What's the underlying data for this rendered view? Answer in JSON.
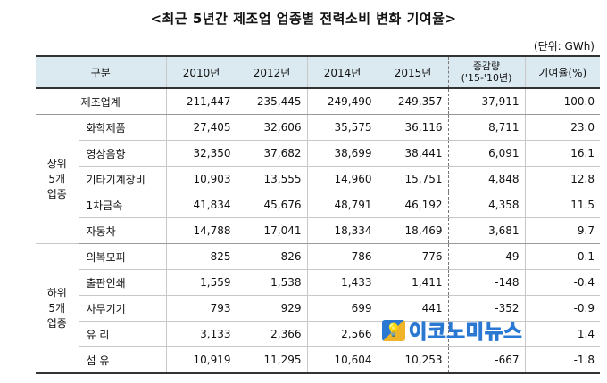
{
  "title": "<최근 5년간 제조업 업종별 전력소비 변화 기여율>",
  "unit": "(단위: GWh)",
  "table": {
    "headers": [
      "구분",
      "2010년",
      "2012년",
      "2014년",
      "2015년",
      "증감량\n('15-'10년)",
      "기여율(%)"
    ],
    "total": {
      "label": "제조업계",
      "values": [
        "211,447",
        "235,445",
        "249,490",
        "249,357",
        "37,911",
        "100.0"
      ]
    },
    "groups": [
      {
        "label": "상위\n5개\n업종",
        "rows": [
          {
            "name": "화학제품",
            "values": [
              "27,405",
              "32,606",
              "35,575",
              "36,116",
              "8,711",
              "23.0"
            ]
          },
          {
            "name": "영상음향",
            "values": [
              "32,350",
              "37,682",
              "38,699",
              "38,441",
              "6,091",
              "16.1"
            ]
          },
          {
            "name": "기타기계장비",
            "values": [
              "10,903",
              "13,555",
              "14,960",
              "15,751",
              "4,848",
              "12.8"
            ]
          },
          {
            "name": "1차금속",
            "values": [
              "41,834",
              "45,676",
              "48,791",
              "46,192",
              "4,358",
              "11.5"
            ]
          },
          {
            "name": "자동차",
            "values": [
              "14,788",
              "17,041",
              "18,334",
              "18,469",
              "3,681",
              "9.7"
            ]
          }
        ]
      },
      {
        "label": "하위\n5개\n업종",
        "rows": [
          {
            "name": "의복모피",
            "values": [
              "825",
              "826",
              "786",
              "776",
              "-49",
              "-0.1"
            ]
          },
          {
            "name": "출판인쇄",
            "values": [
              "1,559",
              "1,538",
              "1,433",
              "1,411",
              "-148",
              "-0.4"
            ]
          },
          {
            "name": "사무기기",
            "values": [
              "793",
              "929",
              "699",
              "441",
              "-352",
              "-0.9"
            ]
          },
          {
            "name": "유 리",
            "values": [
              "3,133",
              "2,366",
              "2,566",
              "",
              "",
              "1.4"
            ]
          },
          {
            "name": "섬 유",
            "values": [
              "10,919",
              "11,295",
              "10,604",
              "10,253",
              "-667",
              "-1.8"
            ]
          }
        ]
      }
    ]
  },
  "watermark": {
    "icon": "bulb-logo-icon",
    "text": "이코노미뉴스",
    "colors": {
      "blue": "#2a78d2",
      "yellow": "#f0b429"
    }
  }
}
